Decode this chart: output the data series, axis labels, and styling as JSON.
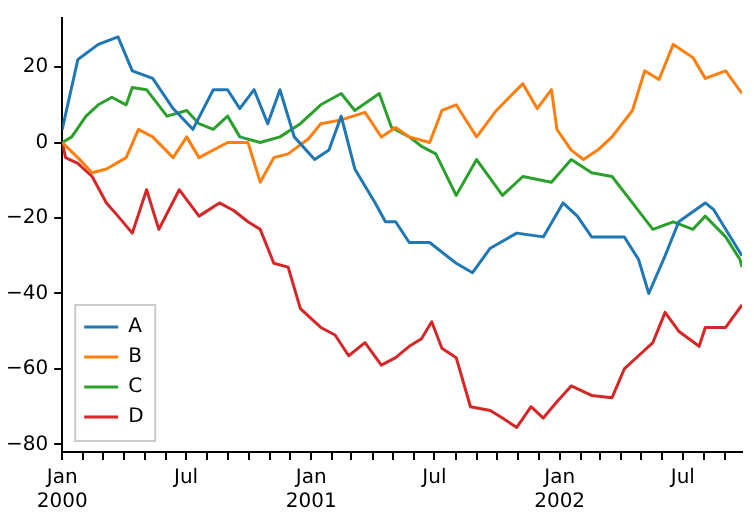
{
  "chart_data": {
    "type": "line",
    "xlim": [
      "2000-01-01",
      "2002-09-26"
    ],
    "xticks": [
      {
        "value": "2000-01-01",
        "label": "Jan 2000"
      },
      {
        "value": "2000-02-01",
        "label": null
      },
      {
        "value": "2000-03-01",
        "label": null
      },
      {
        "value": "2000-04-01",
        "label": null
      },
      {
        "value": "2000-05-01",
        "label": null
      },
      {
        "value": "2000-06-01",
        "label": null
      },
      {
        "value": "2000-07-01",
        "label": "Jul"
      },
      {
        "value": "2000-08-01",
        "label": null
      },
      {
        "value": "2000-09-01",
        "label": null
      },
      {
        "value": "2000-10-01",
        "label": null
      },
      {
        "value": "2000-11-01",
        "label": null
      },
      {
        "value": "2000-12-01",
        "label": null
      },
      {
        "value": "2001-01-01",
        "label": "Jan 2001"
      },
      {
        "value": "2001-02-01",
        "label": null
      },
      {
        "value": "2001-03-01",
        "label": null
      },
      {
        "value": "2001-04-01",
        "label": null
      },
      {
        "value": "2001-05-01",
        "label": null
      },
      {
        "value": "2001-06-01",
        "label": null
      },
      {
        "value": "2001-07-01",
        "label": "Jul"
      },
      {
        "value": "2001-08-01",
        "label": null
      },
      {
        "value": "2001-09-01",
        "label": null
      },
      {
        "value": "2001-10-01",
        "label": null
      },
      {
        "value": "2001-11-01",
        "label": null
      },
      {
        "value": "2001-12-01",
        "label": null
      },
      {
        "value": "2002-01-01",
        "label": "Jan 2002"
      },
      {
        "value": "2002-02-01",
        "label": null
      },
      {
        "value": "2002-03-01",
        "label": null
      },
      {
        "value": "2002-04-01",
        "label": null
      },
      {
        "value": "2002-05-01",
        "label": null
      },
      {
        "value": "2002-06-01",
        "label": null
      },
      {
        "value": "2002-07-01",
        "label": "Jul"
      },
      {
        "value": "2002-08-01",
        "label": null
      },
      {
        "value": "2002-09-01",
        "label": null
      }
    ],
    "ylim": [
      -82,
      33
    ],
    "yticks": [
      -80,
      -60,
      -40,
      -20,
      0,
      20
    ],
    "legend": "bottom left",
    "grid": false,
    "series": [
      {
        "name": "A",
        "color": "#1f77b4",
        "x": [
          "2000-01-01",
          "2000-01-24",
          "2000-02-23",
          "2000-03-23",
          "2000-04-13",
          "2000-05-13",
          "2000-06-12",
          "2000-07-11",
          "2000-08-10",
          "2000-08-31",
          "2000-09-18",
          "2000-10-09",
          "2000-10-29",
          "2000-11-16",
          "2000-12-07",
          "2001-01-06",
          "2001-01-27",
          "2001-02-14",
          "2001-03-06",
          "2001-04-05",
          "2001-04-20",
          "2001-05-05",
          "2001-05-25",
          "2001-06-24",
          "2001-08-02",
          "2001-08-26",
          "2001-09-21",
          "2001-10-30",
          "2001-12-08",
          "2002-01-06",
          "2002-01-27",
          "2002-02-17",
          "2002-04-06",
          "2002-04-27",
          "2002-05-12",
          "2002-06-05",
          "2002-06-25",
          "2002-08-03",
          "2002-08-15",
          "2002-09-02",
          "2002-09-26"
        ],
        "values": [
          3.5,
          22,
          26,
          28,
          19,
          17,
          9,
          3.5,
          14,
          14,
          9,
          14,
          5,
          14,
          1.5,
          -4.5,
          -2,
          7,
          -7,
          -16,
          -21,
          -21,
          -26.5,
          -26.5,
          -32,
          -34.5,
          -28,
          -24,
          -25,
          -16,
          -19.5,
          -25,
          -25,
          -31,
          -40,
          -30,
          -21,
          -16,
          -17.7,
          -23,
          -30
        ]
      },
      {
        "name": "B",
        "color": "#ff7f0e",
        "x": [
          "2000-01-01",
          "2000-01-24",
          "2000-02-14",
          "2000-03-06",
          "2000-04-04",
          "2000-04-22",
          "2000-05-13",
          "2000-06-12",
          "2000-07-02",
          "2000-07-20",
          "2000-08-31",
          "2000-09-30",
          "2000-10-18",
          "2000-11-07",
          "2000-11-28",
          "2000-12-28",
          "2001-01-15",
          "2001-02-14",
          "2001-03-21",
          "2001-04-14",
          "2001-05-05",
          "2001-05-25",
          "2001-06-24",
          "2001-07-12",
          "2001-08-02",
          "2001-09-01",
          "2001-09-30",
          "2001-11-08",
          "2001-11-29",
          "2001-12-20",
          "2001-12-28",
          "2002-01-18",
          "2002-02-05",
          "2002-02-26",
          "2002-03-19",
          "2002-04-18",
          "2002-05-06",
          "2002-05-27",
          "2002-06-17",
          "2002-07-16",
          "2002-08-03",
          "2002-09-02",
          "2002-09-26"
        ],
        "values": [
          0,
          -4,
          -8,
          -7,
          -4,
          3.5,
          1.5,
          -4,
          1.5,
          -4,
          0,
          0,
          -10.5,
          -4,
          -3,
          1,
          5,
          6,
          8,
          1.5,
          4,
          1.5,
          0,
          8.5,
          10,
          1.5,
          8.5,
          15.6,
          9,
          14,
          3.5,
          -2,
          -4.5,
          -2,
          1.5,
          8.5,
          19,
          16.7,
          26,
          22.5,
          17,
          19,
          13
        ]
      },
      {
        "name": "C",
        "color": "#2ca02c",
        "x": [
          "2000-01-01",
          "2000-01-15",
          "2000-02-05",
          "2000-02-23",
          "2000-03-14",
          "2000-04-04",
          "2000-04-13",
          "2000-05-04",
          "2000-06-03",
          "2000-07-02",
          "2000-07-20",
          "2000-08-10",
          "2000-08-31",
          "2000-09-18",
          "2000-10-18",
          "2000-11-16",
          "2000-12-16",
          "2001-01-15",
          "2001-02-14",
          "2001-03-06",
          "2001-04-11",
          "2001-04-29",
          "2001-05-25",
          "2001-06-12",
          "2001-07-03",
          "2001-08-02",
          "2001-09-01",
          "2001-10-09",
          "2001-11-08",
          "2001-12-20",
          "2002-01-18",
          "2002-02-17",
          "2002-03-19",
          "2002-04-18",
          "2002-05-18",
          "2002-06-17",
          "2002-07-16",
          "2002-08-03",
          "2002-09-02",
          "2002-09-23",
          "2002-09-26"
        ],
        "values": [
          0,
          1.5,
          7,
          10,
          12,
          10,
          14.6,
          14,
          7,
          8.5,
          5,
          3.5,
          7,
          1.5,
          0,
          1.5,
          5,
          10,
          13,
          8.5,
          13,
          4,
          1.5,
          -1,
          -3,
          -14,
          -4.5,
          -14,
          -9,
          -10.5,
          -4.5,
          -8,
          -9,
          -16,
          -23,
          -21,
          -23,
          -19.5,
          -25,
          -31,
          -33
        ]
      },
      {
        "name": "D",
        "color": "#d62728",
        "x": [
          "2000-01-01",
          "2000-01-06",
          "2000-01-24",
          "2000-02-14",
          "2000-03-06",
          "2000-03-23",
          "2000-04-13",
          "2000-05-04",
          "2000-05-22",
          "2000-06-21",
          "2000-07-20",
          "2000-08-19",
          "2000-09-09",
          "2000-09-30",
          "2000-10-18",
          "2000-11-07",
          "2000-11-28",
          "2000-12-16",
          "2001-01-15",
          "2001-02-05",
          "2001-02-25",
          "2001-03-21",
          "2001-04-14",
          "2001-05-05",
          "2001-05-25",
          "2001-06-12",
          "2001-06-27",
          "2001-07-12",
          "2001-08-02",
          "2001-08-23",
          "2001-09-21",
          "2001-10-09",
          "2001-10-30",
          "2001-11-20",
          "2001-12-08",
          "2001-12-28",
          "2002-01-18",
          "2002-02-17",
          "2002-03-19",
          "2002-04-06",
          "2002-04-27",
          "2002-05-18",
          "2002-06-05",
          "2002-06-25",
          "2002-07-25",
          "2002-08-03",
          "2002-09-02",
          "2002-09-26"
        ],
        "values": [
          0,
          -4,
          -5.5,
          -9,
          -16,
          -19.5,
          -24,
          -12.5,
          -23,
          -12.5,
          -19.5,
          -16,
          -18,
          -21,
          -23,
          -32,
          -33,
          -44,
          -49,
          -51,
          -56.5,
          -53,
          -59,
          -57,
          -54,
          -52,
          -47.5,
          -54.5,
          -57,
          -70,
          -71,
          -73,
          -75.5,
          -70,
          -73,
          -68.7,
          -64.5,
          -67,
          -67.6,
          -60,
          -56.5,
          -53,
          -45,
          -50,
          -54,
          -49,
          -49,
          -43
        ]
      }
    ]
  }
}
